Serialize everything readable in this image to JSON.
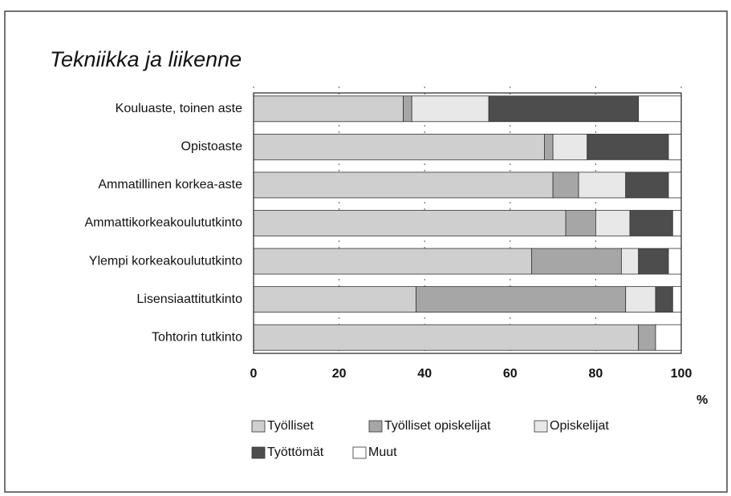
{
  "chart_data": {
    "type": "stacked-bar-horizontal",
    "title": "Tekniikka ja liikenne",
    "categories": [
      "Kouluaste, toinen aste",
      "Opistoaste",
      "Ammatillinen korkea-aste",
      "Ammattikorkeakoulututkinto",
      "Ylempi korkeakoulututkinto",
      "Lisensiaattitutkinto",
      "Tohtorin tutkinto"
    ],
    "series": [
      {
        "name": "Työlliset",
        "color": "#cfcfcf",
        "values": [
          35,
          68,
          70,
          73,
          65,
          38,
          90
        ]
      },
      {
        "name": "Työlliset opiskelijat",
        "color": "#a6a6a6",
        "values": [
          2,
          2,
          6,
          7,
          21,
          49,
          4
        ]
      },
      {
        "name": "Opiskelijat",
        "color": "#e8e8e8",
        "values": [
          18,
          8,
          11,
          8,
          4,
          7,
          0
        ]
      },
      {
        "name": "Työttömät",
        "color": "#4d4d4d",
        "values": [
          35,
          19,
          10,
          10,
          7,
          4,
          0
        ]
      },
      {
        "name": "Muut",
        "color": "#ffffff",
        "values": [
          10,
          3,
          3,
          2,
          3,
          2,
          6
        ]
      }
    ],
    "xlim": [
      0,
      100
    ],
    "xticks": [
      0,
      20,
      40,
      60,
      80,
      100
    ],
    "xlabel": "%",
    "grid": true
  }
}
